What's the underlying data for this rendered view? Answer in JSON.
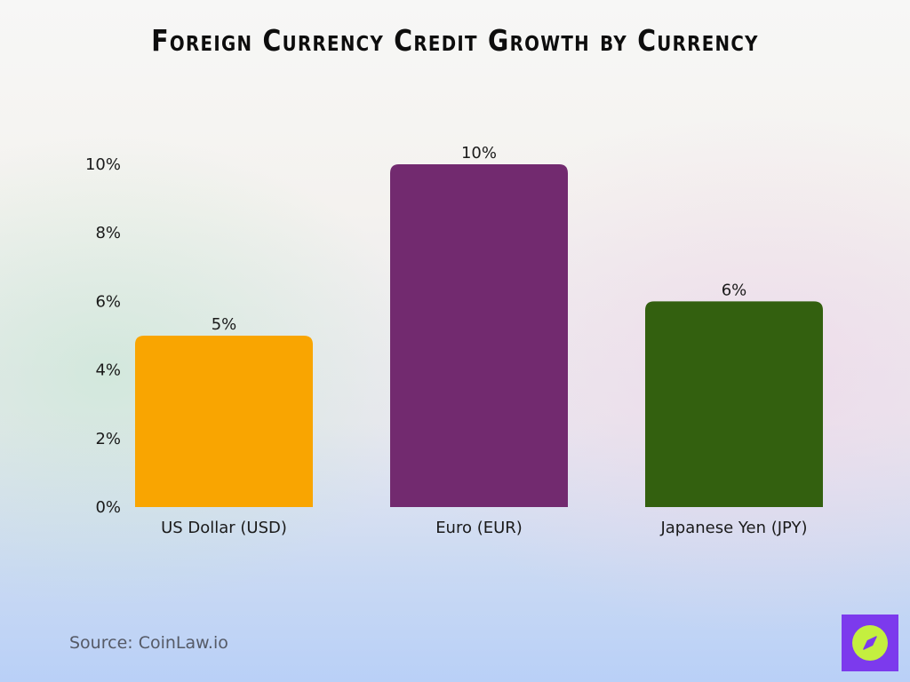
{
  "title": "Foreign Currency Credit Growth by Currency",
  "source": "Source: CoinLaw.io",
  "logo_icon": "compass-icon",
  "chart_data": {
    "type": "bar",
    "title": "Foreign Currency Credit Growth by Currency",
    "xlabel": "",
    "ylabel": "",
    "categories": [
      "US Dollar (USD)",
      "Euro (EUR)",
      "Japanese Yen (JPY)"
    ],
    "values": [
      5,
      10,
      6
    ],
    "value_labels": [
      "5%",
      "10%",
      "6%"
    ],
    "colors": [
      "#f9a501",
      "#722a6f",
      "#33600f"
    ],
    "ylim": [
      0,
      10
    ],
    "yticks": [
      0,
      2,
      4,
      6,
      8,
      10
    ],
    "ytick_labels": [
      "0%",
      "2%",
      "4%",
      "6%",
      "8%",
      "10%"
    ],
    "grid": false,
    "legend": "none"
  }
}
